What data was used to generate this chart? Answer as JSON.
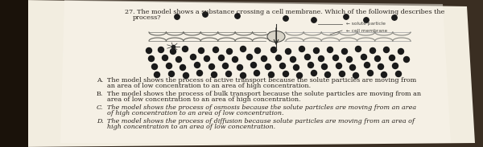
{
  "bg_color": "#3a2e22",
  "paper_color": "#f0ece0",
  "paper_color2": "#e8e3d3",
  "question_line1": "27. The model shows a substance crossing a cell membrane. Which of the following describes the",
  "question_line2": "process?",
  "choices": [
    {
      "letter": "A.",
      "italic": false,
      "line1": "The model shows the process of active transport because the solute particles are moving from",
      "line2": "an area of low concentration to an area of high concentration."
    },
    {
      "letter": "B.",
      "italic": false,
      "line1": "The model shows the process of bulk transport because the solute particles are moving from an",
      "line2": "area of low concentration to an area of high concentration."
    },
    {
      "letter": "C.",
      "italic": true,
      "line1": "The model shows the process of osmosis because the solute particles are moving from an area",
      "line2": "of high concentration to an area of low concentration."
    },
    {
      "letter": "D.",
      "italic": true,
      "line1": "The model shows the process of diffusion because solute particles are moving from an area of",
      "line2": "high concentration to an area of low concentration."
    }
  ],
  "text_color": "#2a2520",
  "diagram_color": "#888880",
  "dot_color": "#1a1a1a",
  "label_color": "#444440",
  "font_size_q": 5.8,
  "font_size_c": 5.8
}
